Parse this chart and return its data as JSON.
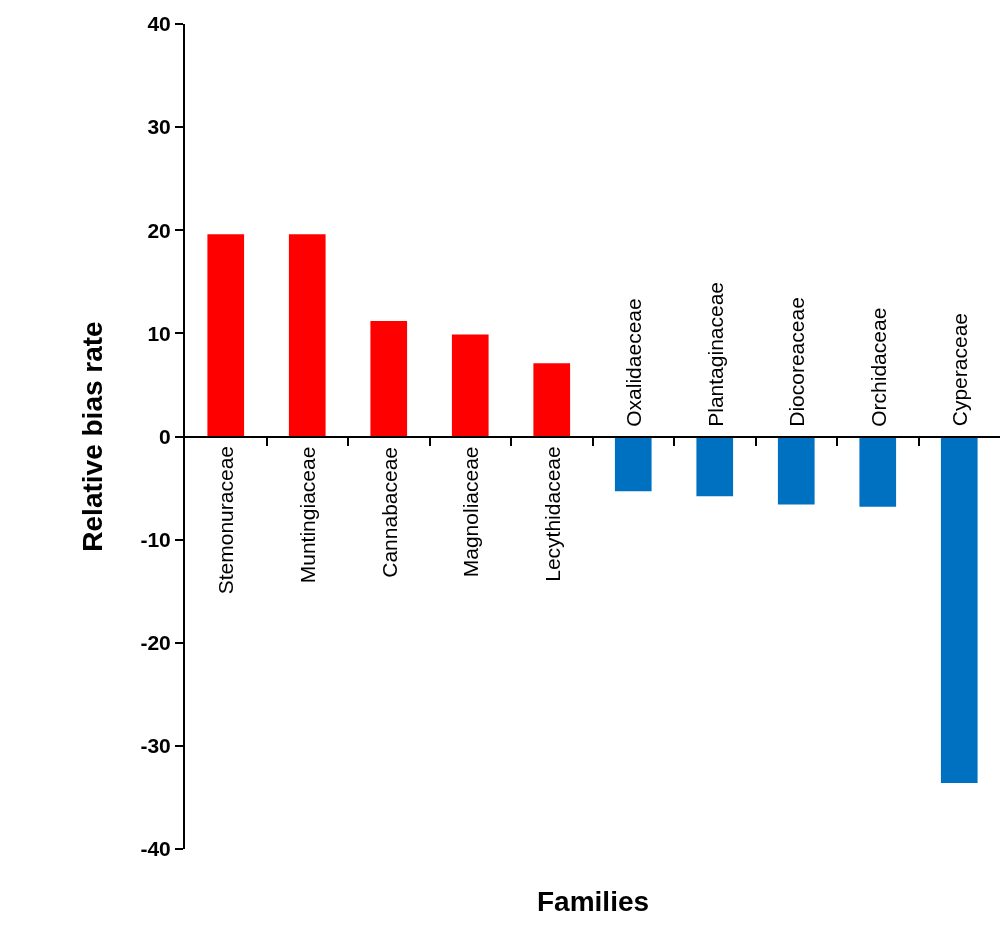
{
  "chart_data": {
    "type": "bar",
    "xlabel": "Families",
    "ylabel": "Relative bias rate",
    "categories": [
      "Stemonuraceae",
      "Muntingiaceae",
      "Cannabaceae",
      "Magnoliaceae",
      "Lecythidaceae",
      "Oxalidaeceae",
      "Plantaginaceae",
      "Diocoreaceae",
      "Orchidaceae",
      "Cyperaceae"
    ],
    "values": [
      19.6,
      19.6,
      11.2,
      9.9,
      7.1,
      -5.3,
      -5.8,
      -6.6,
      -6.8,
      -33.6
    ],
    "colors": [
      "#ff0000",
      "#ff0000",
      "#ff0000",
      "#ff0000",
      "#ff0000",
      "#0070c0",
      "#0070c0",
      "#0070c0",
      "#0070c0",
      "#0070c0"
    ],
    "ylim": [
      -40,
      40
    ],
    "yticks": [
      -40,
      -30,
      -20,
      -10,
      0,
      10,
      20,
      30,
      40
    ],
    "grid": false,
    "legend": false
  }
}
